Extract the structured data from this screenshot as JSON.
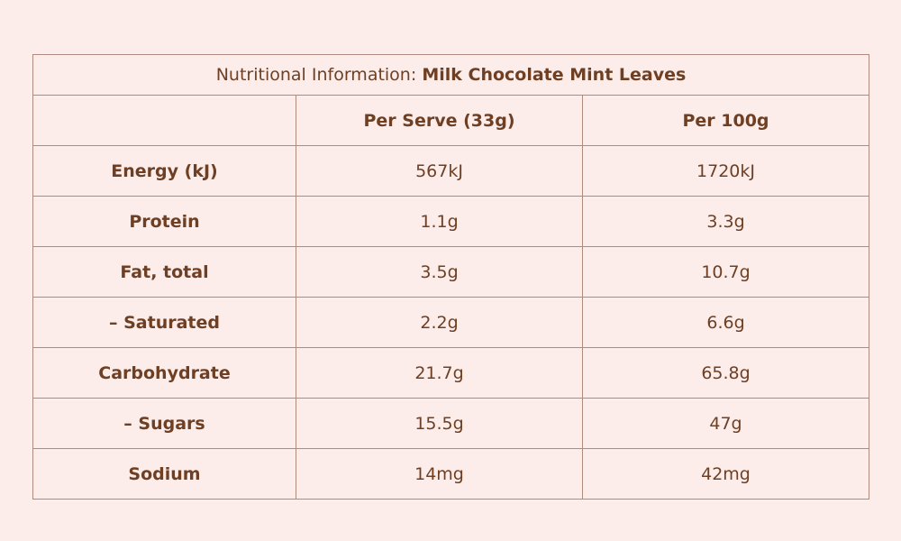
{
  "title": {
    "label": "Nutritional Information:",
    "product": "Milk Chocolate Mint Leaves"
  },
  "table": {
    "columns": [
      "Per Serve (33g)",
      "Per 100g"
    ],
    "rows": [
      [
        "Energy (kJ)",
        "567kJ",
        "1720kJ"
      ],
      [
        "Protein",
        "1.1g",
        "3.3g"
      ],
      [
        "Fat, total",
        "3.5g",
        "10.7g"
      ],
      [
        "– Saturated",
        "2.2g",
        "6.6g"
      ],
      [
        "Carbohydrate",
        "21.7g",
        "65.8g"
      ],
      [
        "– Sugars",
        "15.5g",
        "47g"
      ],
      [
        "Sodium",
        "14mg",
        "42mg"
      ]
    ]
  }
}
